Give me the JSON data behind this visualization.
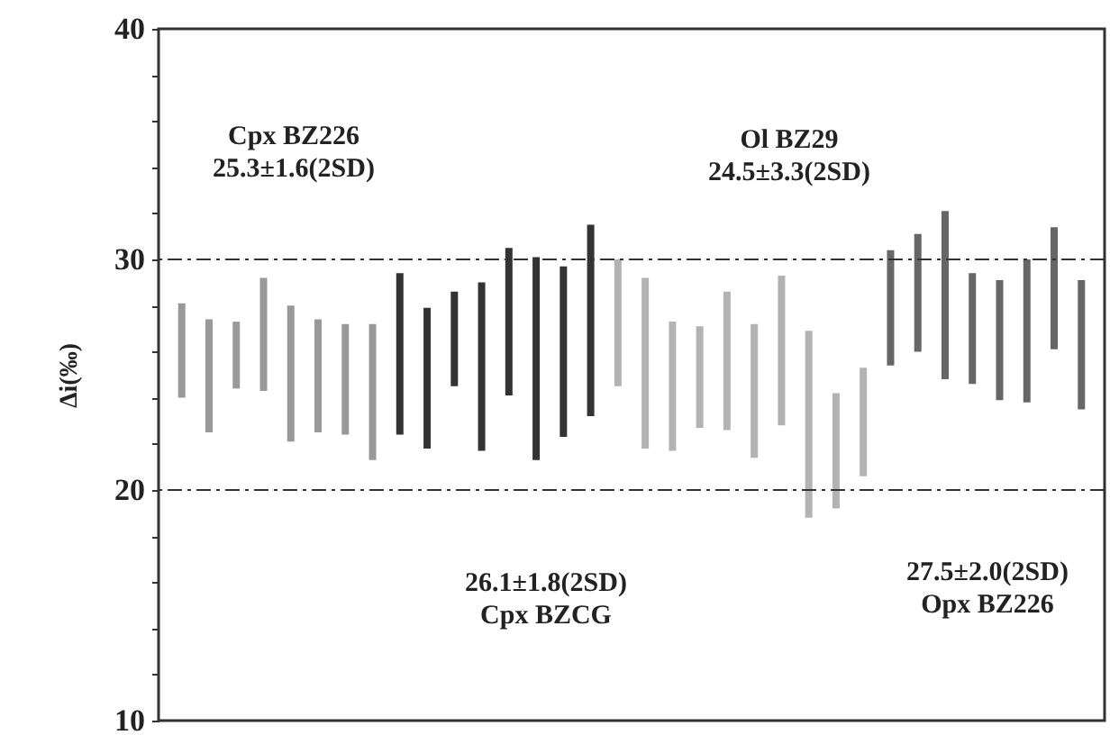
{
  "chart_data": {
    "type": "bar",
    "ylabel": "Δi(‰)",
    "categories": [
      null,
      null,
      null,
      null,
      null,
      null,
      null,
      null,
      null,
      null,
      null,
      null,
      null,
      null,
      null,
      null,
      null,
      null,
      null,
      null,
      null,
      null,
      null,
      null,
      null,
      null,
      null,
      null,
      null,
      null,
      null,
      null,
      null,
      null
    ],
    "base": [
      24.0,
      22.5,
      24.4,
      24.3,
      22.1,
      22.5,
      22.4,
      21.3,
      22.4,
      21.8,
      24.5,
      21.7,
      24.1,
      21.3,
      22.3,
      23.2,
      24.5,
      21.8,
      21.7,
      22.7,
      22.6,
      21.4,
      22.8,
      18.8,
      19.2,
      20.6,
      25.4,
      26.0,
      24.8,
      24.6,
      23.9,
      23.8,
      26.1,
      23.5
    ],
    "values": [
      4.1,
      4.9,
      2.9,
      4.9,
      5.9,
      4.9,
      4.8,
      5.9,
      7.0,
      6.1,
      4.1,
      7.3,
      6.4,
      8.8,
      7.4,
      8.3,
      5.5,
      7.4,
      5.6,
      4.4,
      6.0,
      5.8,
      6.5,
      8.1,
      5.0,
      4.7,
      5.0,
      5.1,
      7.3,
      4.8,
      5.2,
      6.2,
      5.3,
      5.6
    ],
    "colors": [
      "#999999",
      "#999999",
      "#999999",
      "#999999",
      "#999999",
      "#999999",
      "#999999",
      "#999999",
      "#333333",
      "#333333",
      "#333333",
      "#333333",
      "#333333",
      "#333333",
      "#333333",
      "#333333",
      "#b3b3b3",
      "#b3b3b3",
      "#b3b3b3",
      "#b3b3b3",
      "#b3b3b3",
      "#b3b3b3",
      "#b3b3b3",
      "#b3b3b3",
      "#b3b3b3",
      "#b3b3b3",
      "#666666",
      "#666666",
      "#666666",
      "#666666",
      "#666666",
      "#666666",
      "#666666",
      "#666666"
    ],
    "ylim": [
      10,
      40
    ],
    "yticks": [
      10,
      {
        "value": 12,
        "label": null
      },
      {
        "value": 14,
        "label": null
      },
      {
        "value": 16,
        "label": null
      },
      {
        "value": 18,
        "label": null
      },
      20,
      {
        "value": 22,
        "label": null
      },
      {
        "value": 24,
        "label": null
      },
      {
        "value": 26,
        "label": null
      },
      {
        "value": 28,
        "label": null
      },
      30,
      {
        "value": 32,
        "label": null
      },
      {
        "value": 34,
        "label": null
      },
      {
        "value": 36,
        "label": null
      },
      {
        "value": 38,
        "label": null
      },
      40
    ],
    "tick_labels": "y",
    "ref_lines": [
      {
        "axis": "y",
        "value": 30,
        "color": "#333333",
        "line_style": "dashed"
      },
      {
        "axis": "y",
        "value": 20,
        "color": "#333333",
        "line_style": "dashed"
      }
    ],
    "annotations": [
      "Cpx BZ226\n25.3±1.6(2SD)",
      "Ol BZ29\n24.5±3.3(2SD)",
      "26.1±1.8(2SD)\nCpx BZCG",
      "27.5±2.0(2SD)\nOpx BZ226"
    ]
  }
}
